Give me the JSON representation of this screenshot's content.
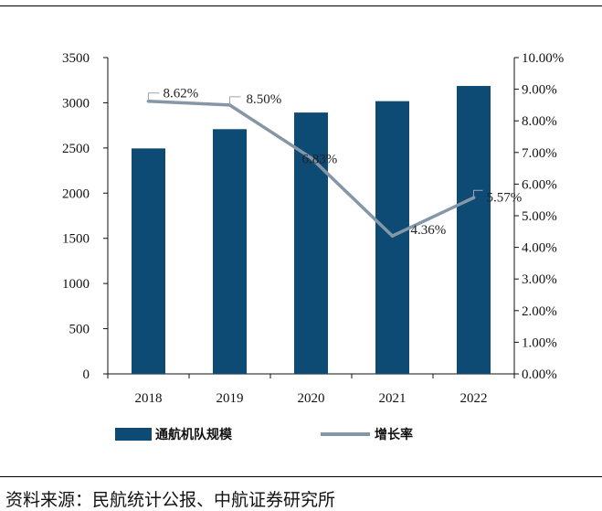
{
  "chart_data": {
    "type": "bar+line",
    "categories": [
      "2018",
      "2019",
      "2020",
      "2021",
      "2022"
    ],
    "series": [
      {
        "name": "通航机队规模",
        "type": "bar",
        "axis": "left",
        "values": [
          2495,
          2708,
          2892,
          3018,
          3186
        ],
        "color": "#0d4b74"
      },
      {
        "name": "增长率",
        "type": "line",
        "axis": "right",
        "values": [
          8.62,
          8.5,
          6.83,
          4.36,
          5.57
        ],
        "labels": [
          "8.62%",
          "8.50%",
          "6.83%",
          "4.36%",
          "5.57%"
        ],
        "color": "#8596a7"
      }
    ],
    "y_left": {
      "min": 0,
      "max": 3500,
      "ticks": [
        "0",
        "500",
        "1000",
        "1500",
        "2000",
        "2500",
        "3000",
        "3500"
      ]
    },
    "y_right": {
      "min": 0,
      "max": 10,
      "ticks": [
        "0.00%",
        "1.00%",
        "2.00%",
        "3.00%",
        "4.00%",
        "5.00%",
        "6.00%",
        "7.00%",
        "8.00%",
        "9.00%",
        "10.00%"
      ]
    },
    "legend": {
      "placement": "bottom",
      "items": [
        "通航机队规模",
        "增长率"
      ]
    }
  },
  "source_text": "资料来源：民航统计公报、中航证券研究所"
}
